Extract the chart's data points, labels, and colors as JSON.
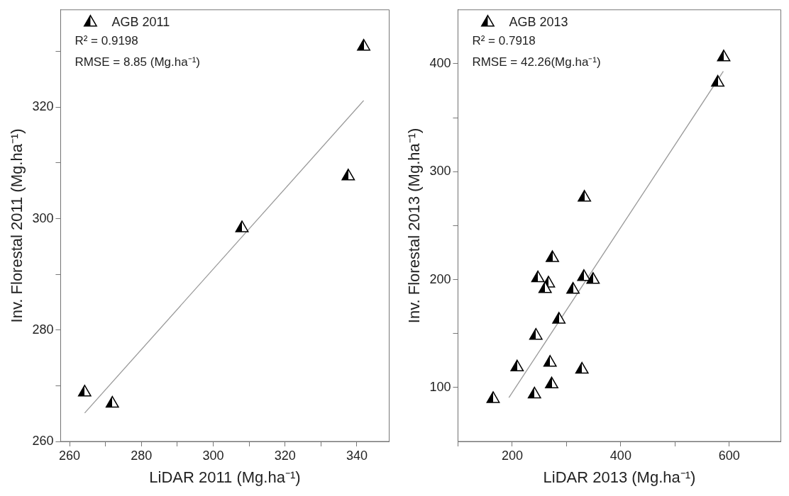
{
  "chart_data": [
    {
      "type": "scatter",
      "xlabel": "LiDAR 2011 (Mg.ha⁻¹)",
      "ylabel": "Inv. Florestal 2011 (Mg.ha⁻¹)",
      "annotations": [
        "R² = 0.9198",
        "RMSE = 8.85 (Mg.ha⁻¹)"
      ],
      "xlim": [
        257.5,
        349
      ],
      "ylim": [
        260,
        337.5
      ],
      "xticks": [
        260,
        {
          "value": 270,
          "label": null
        },
        280,
        {
          "value": 290,
          "label": null
        },
        300,
        {
          "value": 310,
          "label": null
        },
        320,
        {
          "value": 330,
          "label": null
        },
        340
      ],
      "yticks": [
        260,
        {
          "value": 270,
          "label": null
        },
        280,
        {
          "value": 290,
          "label": null
        },
        300,
        {
          "value": 310,
          "label": null
        },
        320,
        {
          "value": 330,
          "label": null
        }
      ],
      "grid": false,
      "legend": "top left",
      "marker": "triangle",
      "series": [
        {
          "name": "AGB 2011",
          "color": "#000000",
          "x": [
            264.2,
            271.9,
            308,
            337.6,
            341.9
          ],
          "values": [
            268.8,
            266.8,
            298.3,
            307.6,
            330.9
          ]
        },
        {
          "type": "line",
          "color": "#999999",
          "marker": "none",
          "x": [
            264.2,
            341.9
          ],
          "values": [
            265.1,
            321.2
          ]
        }
      ]
    },
    {
      "type": "scatter",
      "xlabel": "LiDAR 2013 (Mg.ha⁻¹)",
      "ylabel": "Inv. Florestal 2013 (Mg.ha⁻¹)",
      "annotations": [
        "R² = 0.7918",
        "RMSE = 42.26(Mg.ha⁻¹)"
      ],
      "xlim": [
        100,
        695
      ],
      "ylim": [
        50,
        450
      ],
      "xticks": [
        {
          "value": 100,
          "label": null
        },
        200,
        {
          "value": 300,
          "label": null
        },
        400,
        {
          "value": 500,
          "label": null
        },
        600
      ],
      "yticks": [
        100,
        {
          "value": 150,
          "label": null
        },
        200,
        {
          "value": 250,
          "label": null
        },
        300,
        {
          "value": 350,
          "label": null
        },
        400
      ],
      "grid": false,
      "legend": "top left",
      "marker": "triangle",
      "series": [
        {
          "name": "AGB 2013",
          "color": "#000000",
          "x": [
            164.8,
            209,
            241,
            272.7,
            269.7,
            243.6,
            286,
            247.3,
            266.7,
            260.6,
            274,
            312,
            332,
            349,
            333,
            328.5,
            578.8,
            589.7
          ],
          "values": [
            89.4,
            118.7,
            93.6,
            103,
            123,
            148,
            163,
            201.3,
            196.5,
            191.3,
            220,
            190.7,
            202.5,
            199.8,
            276,
            116.6,
            382.5,
            406
          ]
        },
        {
          "type": "line",
          "color": "#999999",
          "marker": "none",
          "x": [
            193.9,
            589
          ],
          "values": [
            90.6,
            393
          ]
        }
      ]
    }
  ]
}
